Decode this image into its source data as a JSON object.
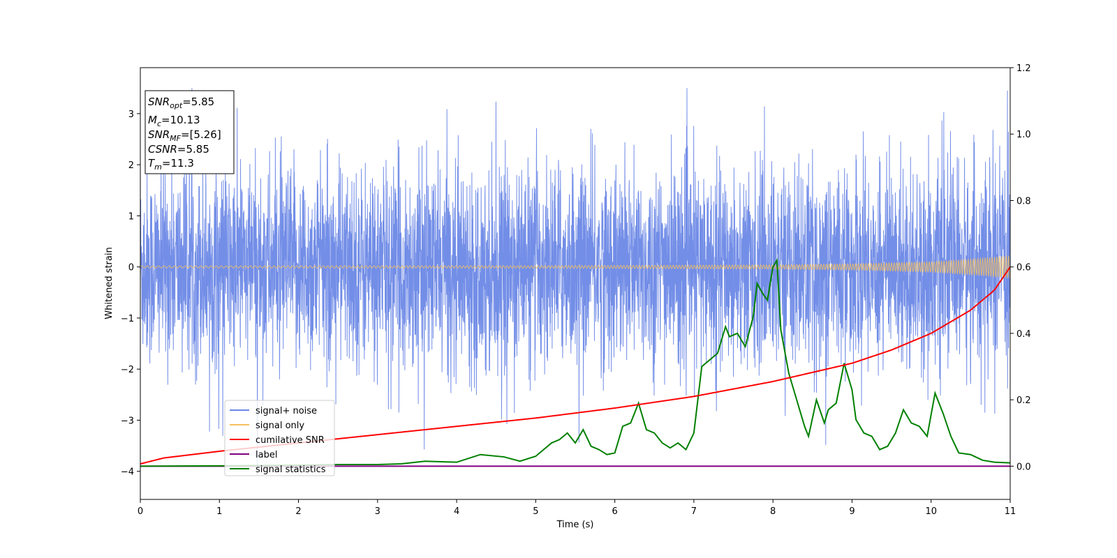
{
  "chart_data": {
    "type": "line",
    "xlabel": "Time (s)",
    "ylabel_left": "Whitened strain",
    "xlim": [
      0,
      11
    ],
    "ylim_left": [
      -4.55,
      3.9
    ],
    "ylim_right": [
      -0.1,
      1.2
    ],
    "x_ticks": [
      "0",
      "1",
      "2",
      "3",
      "4",
      "5",
      "6",
      "7",
      "8",
      "9",
      "10",
      "11"
    ],
    "y_ticks_left": [
      {
        "v": 3,
        "t": "3"
      },
      {
        "v": 2,
        "t": "2"
      },
      {
        "v": 1,
        "t": "1"
      },
      {
        "v": 0,
        "t": "0"
      },
      {
        "v": -1,
        "t": "−1"
      },
      {
        "v": -2,
        "t": "−2"
      },
      {
        "v": -3,
        "t": "−3"
      },
      {
        "v": -4,
        "t": "−4"
      }
    ],
    "y_ticks_right": [
      {
        "v": 1.2,
        "t": "1.2"
      },
      {
        "v": 1.0,
        "t": "1.0"
      },
      {
        "v": 0.8,
        "t": "0.8"
      },
      {
        "v": 0.6,
        "t": "0.6"
      },
      {
        "v": 0.4,
        "t": "0.4"
      },
      {
        "v": 0.2,
        "t": "0.2"
      },
      {
        "v": 0.0,
        "t": "0.0"
      }
    ],
    "grid": false,
    "legend_placement": "lower-left",
    "annotation": {
      "snr_opt": {
        "base": "SNR",
        "sub": "opt",
        "value": "=5.85"
      },
      "mc": {
        "base": "M",
        "sub": "c",
        "value": "=10.13"
      },
      "snr_mf": {
        "base": "SNR",
        "sub": "MF",
        "value": "=[5.26]"
      },
      "csnr": {
        "base": "CSNR",
        "value": "=5.85"
      },
      "tm": {
        "base": "T",
        "sub": "m",
        "value": "=11.3"
      }
    },
    "series": [
      {
        "name": "signal+ noise",
        "color": "#6b88e6",
        "axis": "left",
        "noise_amplitude": 1.4
      },
      {
        "name": "signal only",
        "color": "#f5c060",
        "axis": "left",
        "envelope": {
          "x": [
            0,
            5,
            8,
            9,
            10,
            10.5,
            11
          ],
          "amplitude": [
            0.02,
            0.025,
            0.04,
            0.06,
            0.1,
            0.15,
            0.22
          ]
        }
      },
      {
        "name": "cumilative SNR",
        "color": "#ff0000",
        "axis": "right",
        "x": [
          0,
          0.3,
          1,
          2,
          3,
          4,
          5,
          6,
          7,
          8,
          9,
          9.5,
          10,
          10.5,
          10.8,
          11
        ],
        "y": [
          0.007,
          0.025,
          0.045,
          0.07,
          0.095,
          0.12,
          0.145,
          0.175,
          0.21,
          0.255,
          0.31,
          0.35,
          0.4,
          0.47,
          0.53,
          0.6
        ]
      },
      {
        "name": "label",
        "color": "#800080",
        "axis": "right",
        "x": [
          0,
          11
        ],
        "y": [
          0,
          0
        ]
      },
      {
        "name": "signal statistics",
        "color": "#008000",
        "axis": "right",
        "x": [
          0,
          1,
          2,
          2.5,
          3,
          3.3,
          3.6,
          4,
          4.3,
          4.6,
          4.8,
          5.0,
          5.2,
          5.3,
          5.4,
          5.5,
          5.6,
          5.7,
          5.8,
          5.9,
          6.0,
          6.1,
          6.2,
          6.3,
          6.4,
          6.5,
          6.6,
          6.7,
          6.8,
          6.9,
          7.0,
          7.1,
          7.2,
          7.3,
          7.4,
          7.45,
          7.55,
          7.65,
          7.75,
          7.8,
          7.87,
          7.93,
          8.0,
          8.05,
          8.1,
          8.2,
          8.3,
          8.4,
          8.45,
          8.55,
          8.65,
          8.7,
          8.8,
          8.9,
          9.0,
          9.05,
          9.15,
          9.25,
          9.35,
          9.45,
          9.55,
          9.65,
          9.75,
          9.85,
          9.95,
          10.05,
          10.15,
          10.25,
          10.35,
          10.5,
          10.65,
          10.8,
          11
        ],
        "y": [
          0,
          0.001,
          0.003,
          0.005,
          0.005,
          0.007,
          0.015,
          0.012,
          0.035,
          0.028,
          0.015,
          0.03,
          0.07,
          0.08,
          0.1,
          0.07,
          0.11,
          0.06,
          0.05,
          0.035,
          0.04,
          0.12,
          0.13,
          0.19,
          0.11,
          0.1,
          0.07,
          0.055,
          0.07,
          0.05,
          0.1,
          0.3,
          0.32,
          0.34,
          0.42,
          0.39,
          0.4,
          0.36,
          0.45,
          0.55,
          0.52,
          0.5,
          0.6,
          0.62,
          0.41,
          0.28,
          0.2,
          0.12,
          0.09,
          0.2,
          0.13,
          0.17,
          0.19,
          0.31,
          0.23,
          0.14,
          0.1,
          0.09,
          0.05,
          0.06,
          0.1,
          0.17,
          0.13,
          0.12,
          0.09,
          0.22,
          0.16,
          0.09,
          0.04,
          0.035,
          0.018,
          0.012,
          0.01
        ]
      }
    ]
  }
}
